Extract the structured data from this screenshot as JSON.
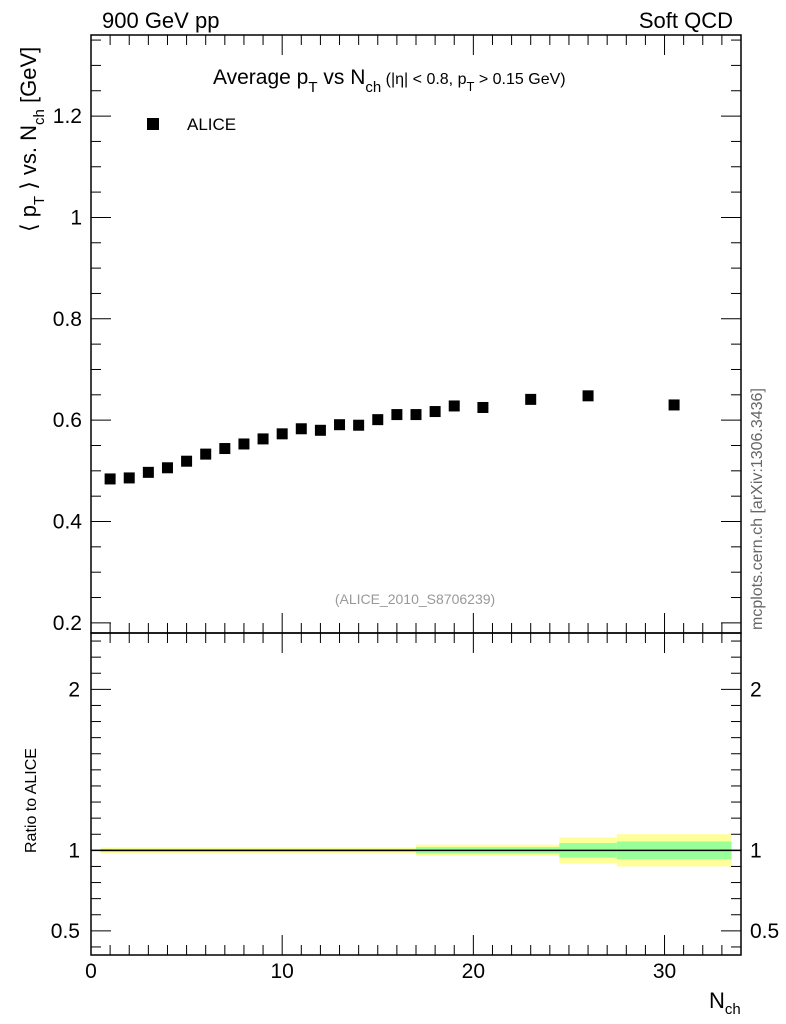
{
  "header": {
    "left": "900 GeV pp",
    "right": "Soft QCD"
  },
  "chart_data": {
    "type": "scatter",
    "title": {
      "main": "Average p",
      "sub_T": "T",
      "mid": " vs N",
      "sub_ch": "ch",
      "cond_open": " (|η| < 0.8, p",
      "cond_sub": "T",
      "cond_close": " > 0.15 GeV)"
    },
    "ylabel": {
      "a": "⟨ p",
      "a_sub": "T",
      "b": " ⟩ vs. N",
      "b_sub": "ch",
      "c": " [GeV]"
    },
    "xlabel": {
      "main": "N",
      "sub": "ch"
    },
    "analysis_id": "(ALICE_2010_S8706239)",
    "side_note": "mcplots.cern.ch [arXiv:1306.3436]",
    "legend": [
      {
        "label": "ALICE",
        "marker": "square",
        "color": "#000000",
        "placement": "top-left"
      }
    ],
    "xlim": [
      0,
      34
    ],
    "ylim": [
      0.18,
      1.36
    ],
    "x_ticks": [
      0,
      10,
      20,
      30
    ],
    "x_tick_labels": [
      "0",
      "10",
      "20",
      "30"
    ],
    "y_ticks": [
      0.2,
      0.4,
      0.6,
      0.8,
      1.0,
      1.2
    ],
    "y_tick_labels": [
      "0.2",
      "0.4",
      "0.6",
      "0.8",
      "1",
      "1.2"
    ],
    "series": [
      {
        "name": "ALICE",
        "x": [
          1,
          2,
          3,
          4,
          5,
          6,
          7,
          8,
          9,
          10,
          11,
          12,
          13,
          14,
          15,
          16,
          17,
          18,
          19,
          20.5,
          23,
          26,
          30.5
        ],
        "y": [
          0.484,
          0.486,
          0.497,
          0.506,
          0.519,
          0.533,
          0.544,
          0.553,
          0.563,
          0.573,
          0.583,
          0.58,
          0.591,
          0.59,
          0.601,
          0.611,
          0.611,
          0.617,
          0.628,
          0.625,
          0.641,
          0.648,
          0.63
        ]
      }
    ],
    "ratio": {
      "ylabel": "Ratio to ALICE",
      "ylim": [
        0.35,
        2.35
      ],
      "y_ticks": [
        0.5,
        1,
        2
      ],
      "y_tick_labels": [
        "0.5",
        "1",
        "2"
      ],
      "reference": 1,
      "bands": [
        {
          "x0": 0.5,
          "x1": 24.5,
          "inner": [
            0.991,
            1.009
          ],
          "outer": [
            0.982,
            1.018
          ]
        },
        {
          "x0": 17,
          "x1": 24.5,
          "inner": [
            0.98,
            1.02
          ],
          "outer": [
            0.965,
            1.035
          ]
        },
        {
          "x0": 24.5,
          "x1": 27.5,
          "inner": [
            0.955,
            1.045
          ],
          "outer": [
            0.92,
            1.08
          ]
        },
        {
          "x0": 27.5,
          "x1": 33.5,
          "inner": [
            0.945,
            1.055
          ],
          "outer": [
            0.9,
            1.1
          ]
        }
      ],
      "colors": {
        "inner": "#99ff99",
        "outer": "#ffff99",
        "line": "#000000"
      }
    }
  }
}
